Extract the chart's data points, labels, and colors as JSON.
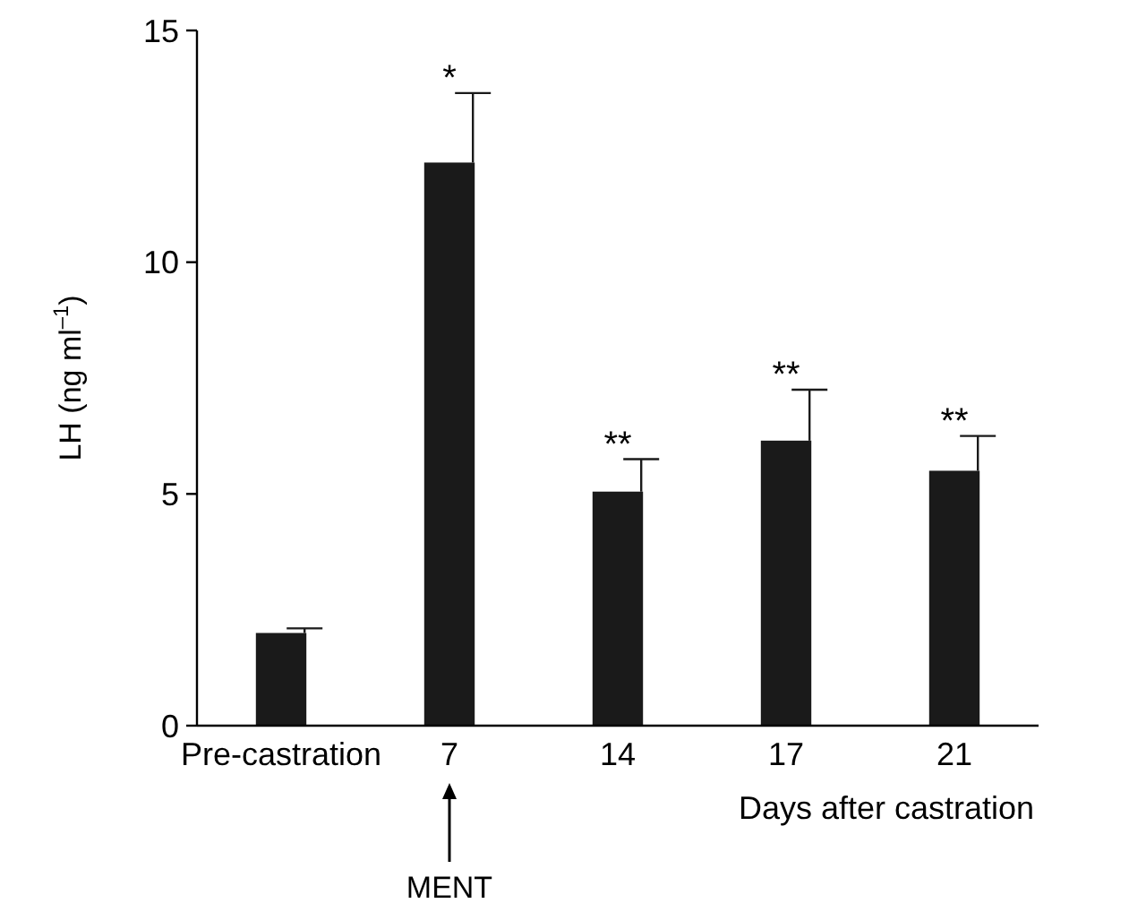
{
  "chart_data": {
    "type": "bar",
    "ylabel": "LH (ng ml$^{–1}$)",
    "xlabel": "Days after castration",
    "categories": [
      "Pre-castration",
      "7",
      "14",
      "17",
      "21"
    ],
    "values": [
      2.0,
      12.15,
      5.05,
      6.15,
      5.5
    ],
    "errors": [
      [
        2.0,
        2.1
      ],
      [
        12.15,
        13.65
      ],
      [
        5.05,
        5.75
      ],
      [
        6.15,
        7.25
      ],
      [
        5.5,
        6.25
      ]
    ],
    "color": "#1a1a1a",
    "ylim": [
      0,
      15
    ],
    "yticks": [
      0,
      5,
      10,
      15
    ],
    "grid": false,
    "value_labels": [
      null,
      "*",
      "**",
      "**",
      "**"
    ],
    "annotations": [
      "MENT"
    ]
  }
}
